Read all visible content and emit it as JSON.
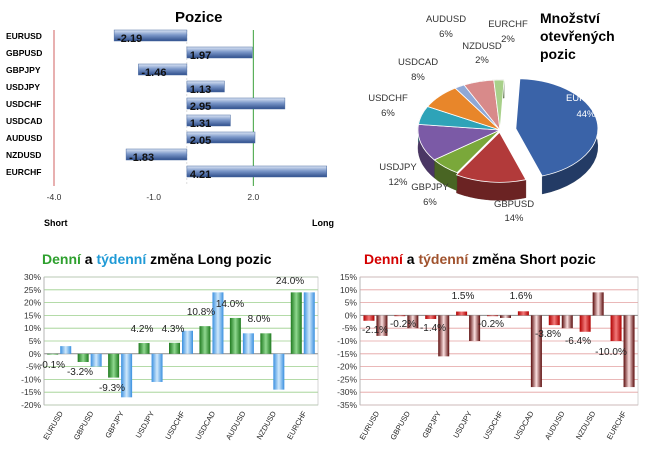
{
  "colors": {
    "green": "#2ea02e",
    "blue": "#1f9ad6",
    "red": "#d40000",
    "brown": "#a0522d",
    "bar_blue": "#3a63a8",
    "bar_green": "#2f8a2f",
    "bar_lightblue": "#6fb6ee",
    "bar_red": "#c00000",
    "bar_darkred": "#7a0f0f"
  },
  "chart_data": [
    {
      "type": "bar",
      "orientation": "horizontal",
      "title": "Pozice",
      "categories": [
        "EURUSD",
        "GBPUSD",
        "GBPJPY",
        "USDJPY",
        "USDCHF",
        "USDCAD",
        "AUDUSD",
        "NZDUSD",
        "EURCHF"
      ],
      "values": [
        -2.19,
        1.97,
        -1.46,
        1.13,
        2.95,
        1.31,
        2.05,
        -1.83,
        4.21
      ],
      "value_labels": [
        "-2.19",
        "1.97",
        "-1.46",
        "1.13",
        "2.95",
        "1.31",
        "2.05",
        "-1.83",
        "4.21"
      ],
      "xlim": [
        -4.0,
        5.0
      ],
      "xticks": [
        "-4.0",
        "-1.0",
        "2.0"
      ],
      "xtick_values": [
        -4,
        -1,
        2
      ],
      "left_label": "Short",
      "right_label": "Long"
    },
    {
      "type": "pie",
      "title": "Množství otevřených pozic",
      "title_lines": [
        "Množství",
        "otevřených",
        "pozic"
      ],
      "slices": [
        {
          "label": "EURUSD",
          "pct": "44%",
          "value": 44,
          "color": "#3a63a8"
        },
        {
          "label": "GBPUSD",
          "pct": "14%",
          "value": 14,
          "color": "#b23a3a"
        },
        {
          "label": "GBPJPY",
          "pct": "6%",
          "value": 6,
          "color": "#7aa83a"
        },
        {
          "label": "USDJPY",
          "pct": "12%",
          "value": 12,
          "color": "#7b5aa6"
        },
        {
          "label": "USDCHF",
          "pct": "6%",
          "value": 6,
          "color": "#2ea3b8"
        },
        {
          "label": "USDCAD",
          "pct": "8%",
          "value": 8,
          "color": "#e8862a"
        },
        {
          "label": "NZDUSD",
          "pct": "2%",
          "value": 2,
          "color": "#8fa8d6"
        },
        {
          "label": "AUDUSD",
          "pct": "6%",
          "value": 6,
          "color": "#d88a8a"
        },
        {
          "label": "EURCHF",
          "pct": "2%",
          "value": 2,
          "color": "#a8d08a"
        }
      ]
    },
    {
      "type": "bar",
      "title_parts": [
        "Denní",
        " a ",
        "týdenní",
        " změna Long pozic"
      ],
      "categories": [
        "EURUSD",
        "GBPUSD",
        "GBPJPY",
        "USDJPY",
        "USDCHF",
        "USDCAD",
        "AUDUSD",
        "NZDUSD",
        "EURCHF"
      ],
      "series": [
        {
          "values": [
            -0.1,
            -3.2,
            -9.3,
            4.2,
            4.3,
            10.8,
            14.0,
            8.0,
            24.0
          ]
        },
        {
          "values": [
            3.0,
            -5.0,
            -17.0,
            -11.0,
            9.0,
            24.0,
            8.0,
            -14.0,
            24.0
          ]
        }
      ],
      "data_labels": [
        "-0.1%",
        "-3.2%",
        "-9.3%",
        "4.2%",
        "4.3%",
        "10.8%",
        "14.0%",
        "8.0%",
        "24.0%"
      ],
      "yticks": [
        "30%",
        "25%",
        "20%",
        "15%",
        "10%",
        "5%",
        "0%",
        "-5%",
        "-10%",
        "-15%",
        "-20%"
      ],
      "ylim": [
        -20,
        30
      ]
    },
    {
      "type": "bar",
      "title_parts": [
        "Denní",
        " a ",
        "týdenní",
        " změna Short pozic"
      ],
      "categories": [
        "EURUSD",
        "GBPUSD",
        "GBPJPY",
        "USDJPY",
        "USDCHF",
        "USDCAD",
        "AUDUSD",
        "NZDUSD",
        "EURCHF"
      ],
      "series": [
        {
          "values": [
            -2.1,
            -0.2,
            -1.4,
            1.5,
            -0.2,
            1.6,
            -3.8,
            -6.4,
            -10.0
          ]
        },
        {
          "values": [
            -8.0,
            -5.0,
            -16.0,
            -10.0,
            -1.0,
            -28.0,
            -5.0,
            9.0,
            -28.0
          ]
        }
      ],
      "data_labels": [
        "-2.1%",
        "-0.2%",
        "-1.4%",
        "1.5%",
        "-0.2%",
        "1.6%",
        "-3.8%",
        "-6.4%",
        "-10.0%"
      ],
      "yticks": [
        "15%",
        "10%",
        "5%",
        "0%",
        "-5%",
        "-10%",
        "-15%",
        "-20%",
        "-25%",
        "-30%",
        "-35%"
      ],
      "ylim": [
        -35,
        15
      ]
    }
  ]
}
